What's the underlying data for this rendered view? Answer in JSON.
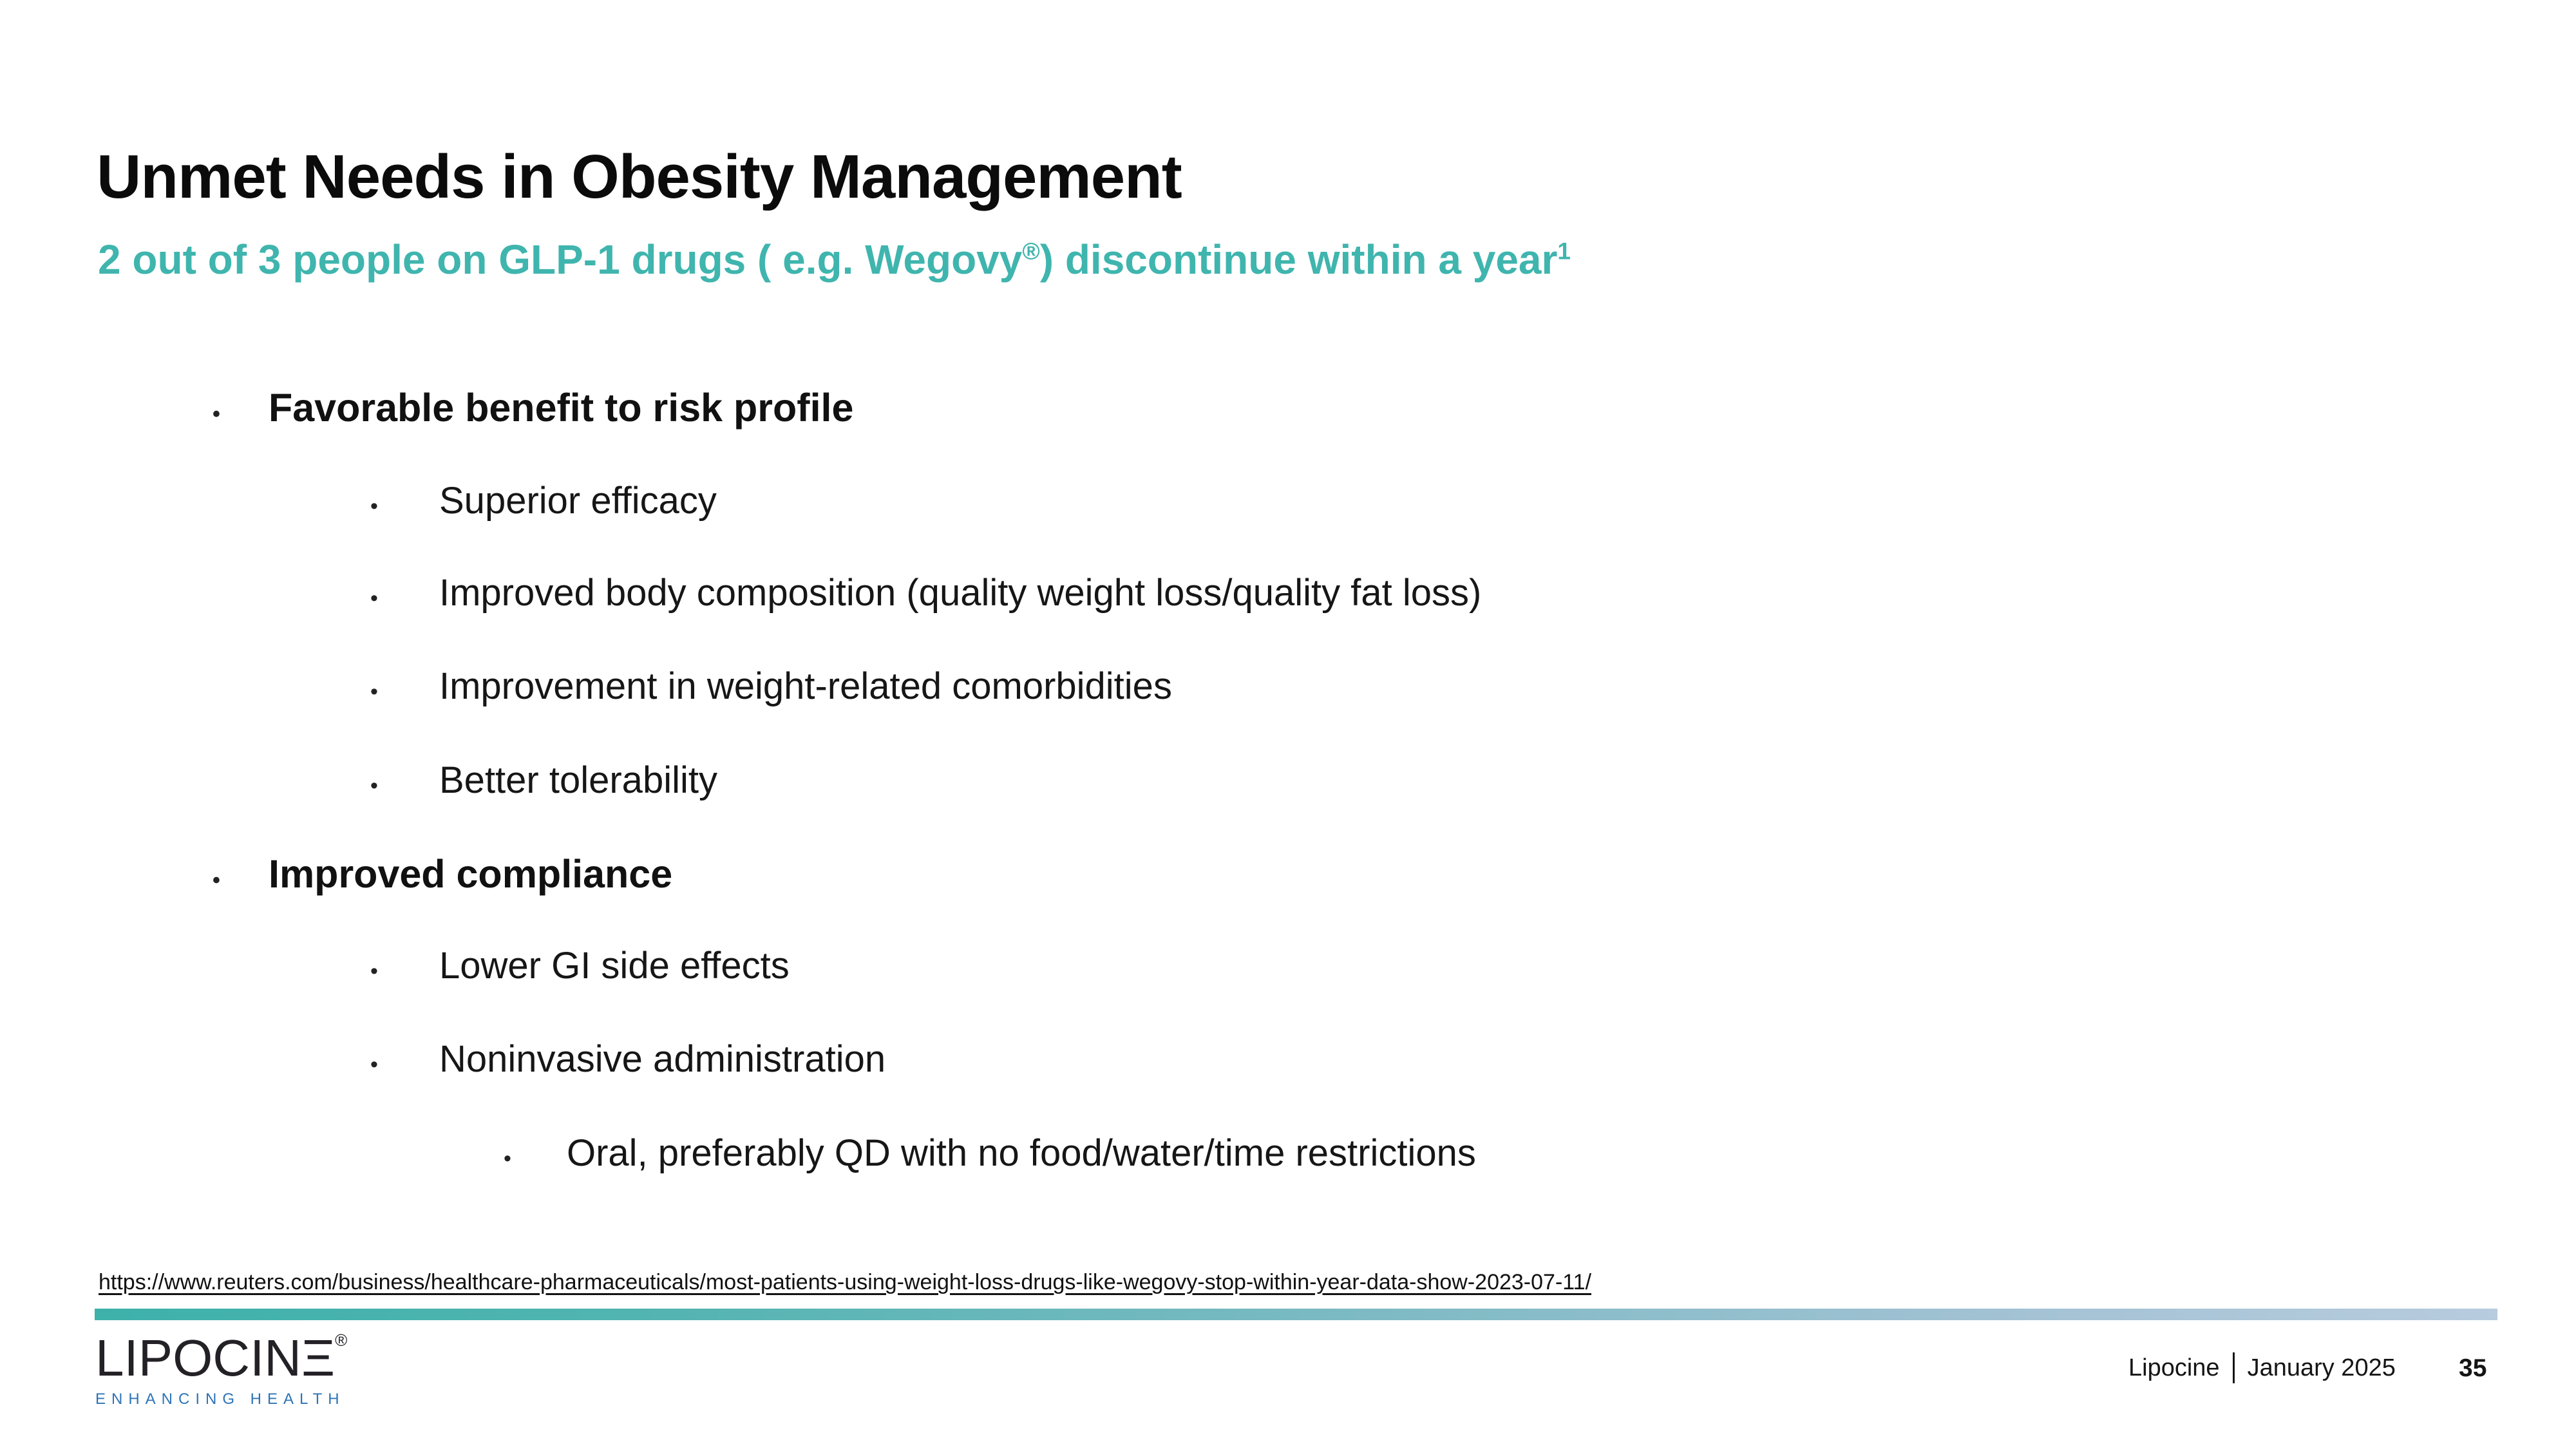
{
  "slide": {
    "title": "Unmet Needs in Obesity Management",
    "subtitle": {
      "part1": "2 out of 3 people on GLP-1 drugs ( e.g. Wegovy",
      "sup1": "®",
      "part2": ") discontinue within a year",
      "sup2": "1"
    },
    "accent_color": "#3FB5AE"
  },
  "bullets": [
    {
      "level": 1,
      "text": "Favorable benefit to risk profile"
    },
    {
      "level": 2,
      "text": "Superior efficacy"
    },
    {
      "level": 2,
      "text": "Improved body composition (quality weight loss/quality fat loss)"
    },
    {
      "level": 2,
      "text": "Improvement in weight-related comorbidities"
    },
    {
      "level": 2,
      "text": "Better tolerability"
    },
    {
      "level": 1,
      "text": "Improved compliance"
    },
    {
      "level": 2,
      "text": "Lower GI side effects"
    },
    {
      "level": 2,
      "text": "Noninvasive administration"
    },
    {
      "level": 3,
      "text": "Oral, preferably QD with no food/water/time restrictions"
    }
  ],
  "source": {
    "url_text": "https://www.reuters.com/business/healthcare-pharmaceuticals/most-patients-using-weight-loss-drugs-like-wegovy-stop-within-year-data-show-2023-07-11/"
  },
  "divider": {
    "gradient_start": "#3EB1AB",
    "gradient_end": "#B7CCDE"
  },
  "footer": {
    "logo_text": "LIPOCIN",
    "logo_e": "Ξ",
    "logo_reg": "®",
    "tagline": "ENHANCING HEALTH",
    "tagline_color": "#2E74B6",
    "company": "Lipocine",
    "date": "January 2025",
    "page_number": "35"
  }
}
